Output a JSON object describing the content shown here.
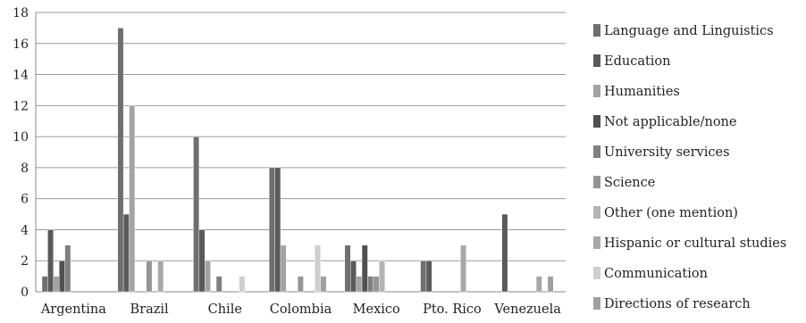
{
  "chart_data": {
    "type": "bar",
    "title": "",
    "xlabel": "",
    "ylabel": "",
    "ylim": [
      0,
      18
    ],
    "yticks": [
      0,
      2,
      4,
      6,
      8,
      10,
      12,
      14,
      16,
      18
    ],
    "grid": true,
    "legend_position": "right",
    "categories": [
      "Argentina",
      "Brazil",
      "Chile",
      "Colombia",
      "Mexico",
      "Pto. Rico",
      "Venezuela"
    ],
    "series": [
      {
        "name": "Language and Linguistics",
        "color": "#6f6f6f",
        "values": [
          1,
          17,
          10,
          8,
          3,
          2,
          0
        ]
      },
      {
        "name": "Education",
        "color": "#5a5a5a",
        "values": [
          4,
          5,
          4,
          8,
          2,
          2,
          5
        ]
      },
      {
        "name": "Humanities",
        "color": "#a3a3a3",
        "values": [
          1,
          12,
          2,
          3,
          1,
          0,
          0
        ]
      },
      {
        "name": "Not applicable/none",
        "color": "#505050",
        "values": [
          2,
          0,
          0,
          0,
          3,
          0,
          0
        ]
      },
      {
        "name": "University services",
        "color": "#808080",
        "values": [
          3,
          0,
          1,
          0,
          1,
          0,
          0
        ]
      },
      {
        "name": "Science",
        "color": "#959595",
        "values": [
          0,
          2,
          0,
          1,
          1,
          0,
          0
        ]
      },
      {
        "name": "Other (one mention)",
        "color": "#b4b4b4",
        "values": [
          0,
          0,
          0,
          0,
          2,
          0,
          0
        ]
      },
      {
        "name": "Hispanic or cultural studies",
        "color": "#a8a8a8",
        "values": [
          0,
          2,
          0,
          0,
          0,
          3,
          1
        ]
      },
      {
        "name": "Communication",
        "color": "#cfcfcf",
        "values": [
          0,
          0,
          1,
          3,
          0,
          0,
          0
        ]
      },
      {
        "name": "Directions of research",
        "color": "#a0a0a0",
        "values": [
          0,
          0,
          0,
          1,
          0,
          0,
          1
        ]
      }
    ]
  }
}
